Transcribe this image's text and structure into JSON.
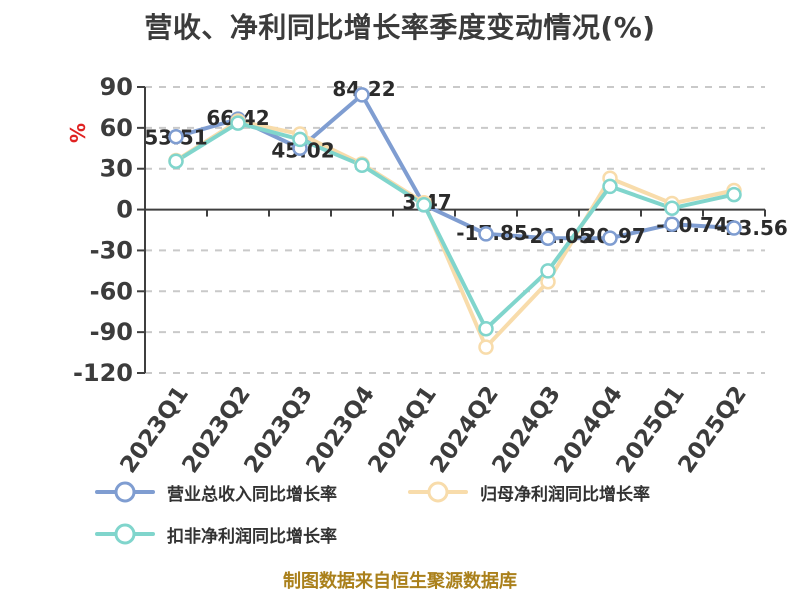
{
  "title": "营收、净利同比增长率季度变动情况(%)",
  "source_note": "制图数据来自恒生聚源数据库",
  "colors": {
    "revenue_line": "#7f9dd1",
    "net_profit_line": "#f8dcab",
    "non_gaap_line": "#80d5cc",
    "grid_line": "#c9c9c9",
    "axis_line": "#3f3f3f",
    "tick_label": "#3c3c3c",
    "data_label": "#2b2b2b",
    "unit_label": "#e02222",
    "source_note": "#aa801b"
  },
  "legend": {
    "items": [
      {
        "label": "营业总收入同比增长率",
        "color": "#7f9dd1"
      },
      {
        "label": "归母净利润同比增长率",
        "color": "#f8dcab"
      },
      {
        "label": "扣非净利润同比增长率",
        "color": "#80d5cc"
      }
    ]
  },
  "chart_data": {
    "type": "line",
    "title": "营收、净利同比增长率季度变动情况(%)",
    "categories": [
      "2023Q1",
      "2023Q2",
      "2023Q3",
      "2023Q4",
      "2024Q1",
      "2024Q2",
      "2024Q3",
      "2024Q4",
      "2025Q1",
      "2025Q2"
    ],
    "series": [
      {
        "name": "营业总收入同比增长率",
        "color": "#7f9dd1",
        "values": [
          53.51,
          66.42,
          45.02,
          84.22,
          3.47,
          -17.85,
          -21.05,
          -20.97,
          -10.74,
          -13.56
        ],
        "labels_visible": true
      },
      {
        "name": "归母净利润同比增长率",
        "color": "#f8dcab",
        "values": [
          36,
          65,
          55.5,
          33.5,
          5,
          -101,
          -53,
          23,
          4.5,
          14
        ],
        "labels_visible": false
      },
      {
        "name": "扣非净利润同比增长率",
        "color": "#80d5cc",
        "values": [
          35.5,
          63.5,
          51.5,
          32.5,
          3.5,
          -87.5,
          -45,
          17,
          1,
          11
        ],
        "labels_visible": false
      }
    ],
    "ylim": [
      -120,
      90
    ],
    "yticks": [
      90,
      60,
      30,
      0,
      -30,
      -60,
      -90,
      -120
    ],
    "ylabel": "%",
    "xlabel": "",
    "grid": "horizontal dashed",
    "legend_position": "bottom-left"
  }
}
